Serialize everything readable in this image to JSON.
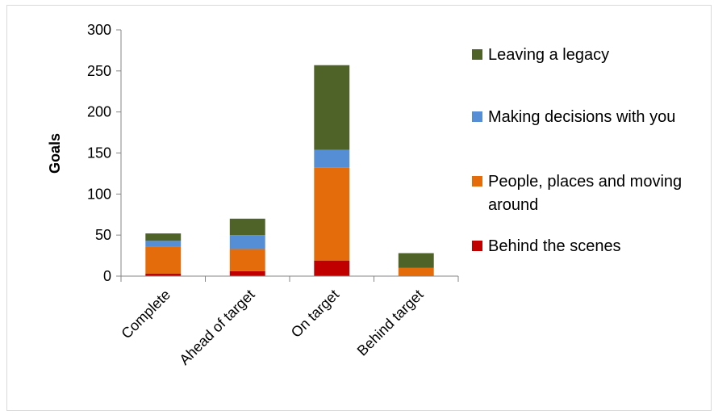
{
  "chart_data": {
    "type": "bar",
    "stacked": true,
    "categories": [
      "Complete",
      "Ahead of target",
      "On target",
      "Behind target"
    ],
    "series": [
      {
        "name": "Behind the scenes",
        "color": "#c00000",
        "values": [
          3,
          6,
          19,
          0
        ]
      },
      {
        "name": "People, places and moving around",
        "color": "#e46c0a",
        "values": [
          33,
          27,
          113,
          10
        ]
      },
      {
        "name": "Making decisions with you",
        "color": "#558ed5",
        "values": [
          7,
          17,
          22,
          0
        ]
      },
      {
        "name": "Leaving a legacy",
        "color": "#4f6228",
        "values": [
          9,
          20,
          103,
          18
        ]
      }
    ],
    "legend_order": [
      "Leaving a legacy",
      "Making decisions with you",
      "People, places and moving around",
      "Behind the scenes"
    ],
    "ylabel": "Goals",
    "xlabel": "",
    "ylim": [
      0,
      300
    ],
    "yticks": [
      0,
      50,
      100,
      150,
      200,
      250,
      300
    ],
    "grid": false,
    "legend_position": "right"
  }
}
